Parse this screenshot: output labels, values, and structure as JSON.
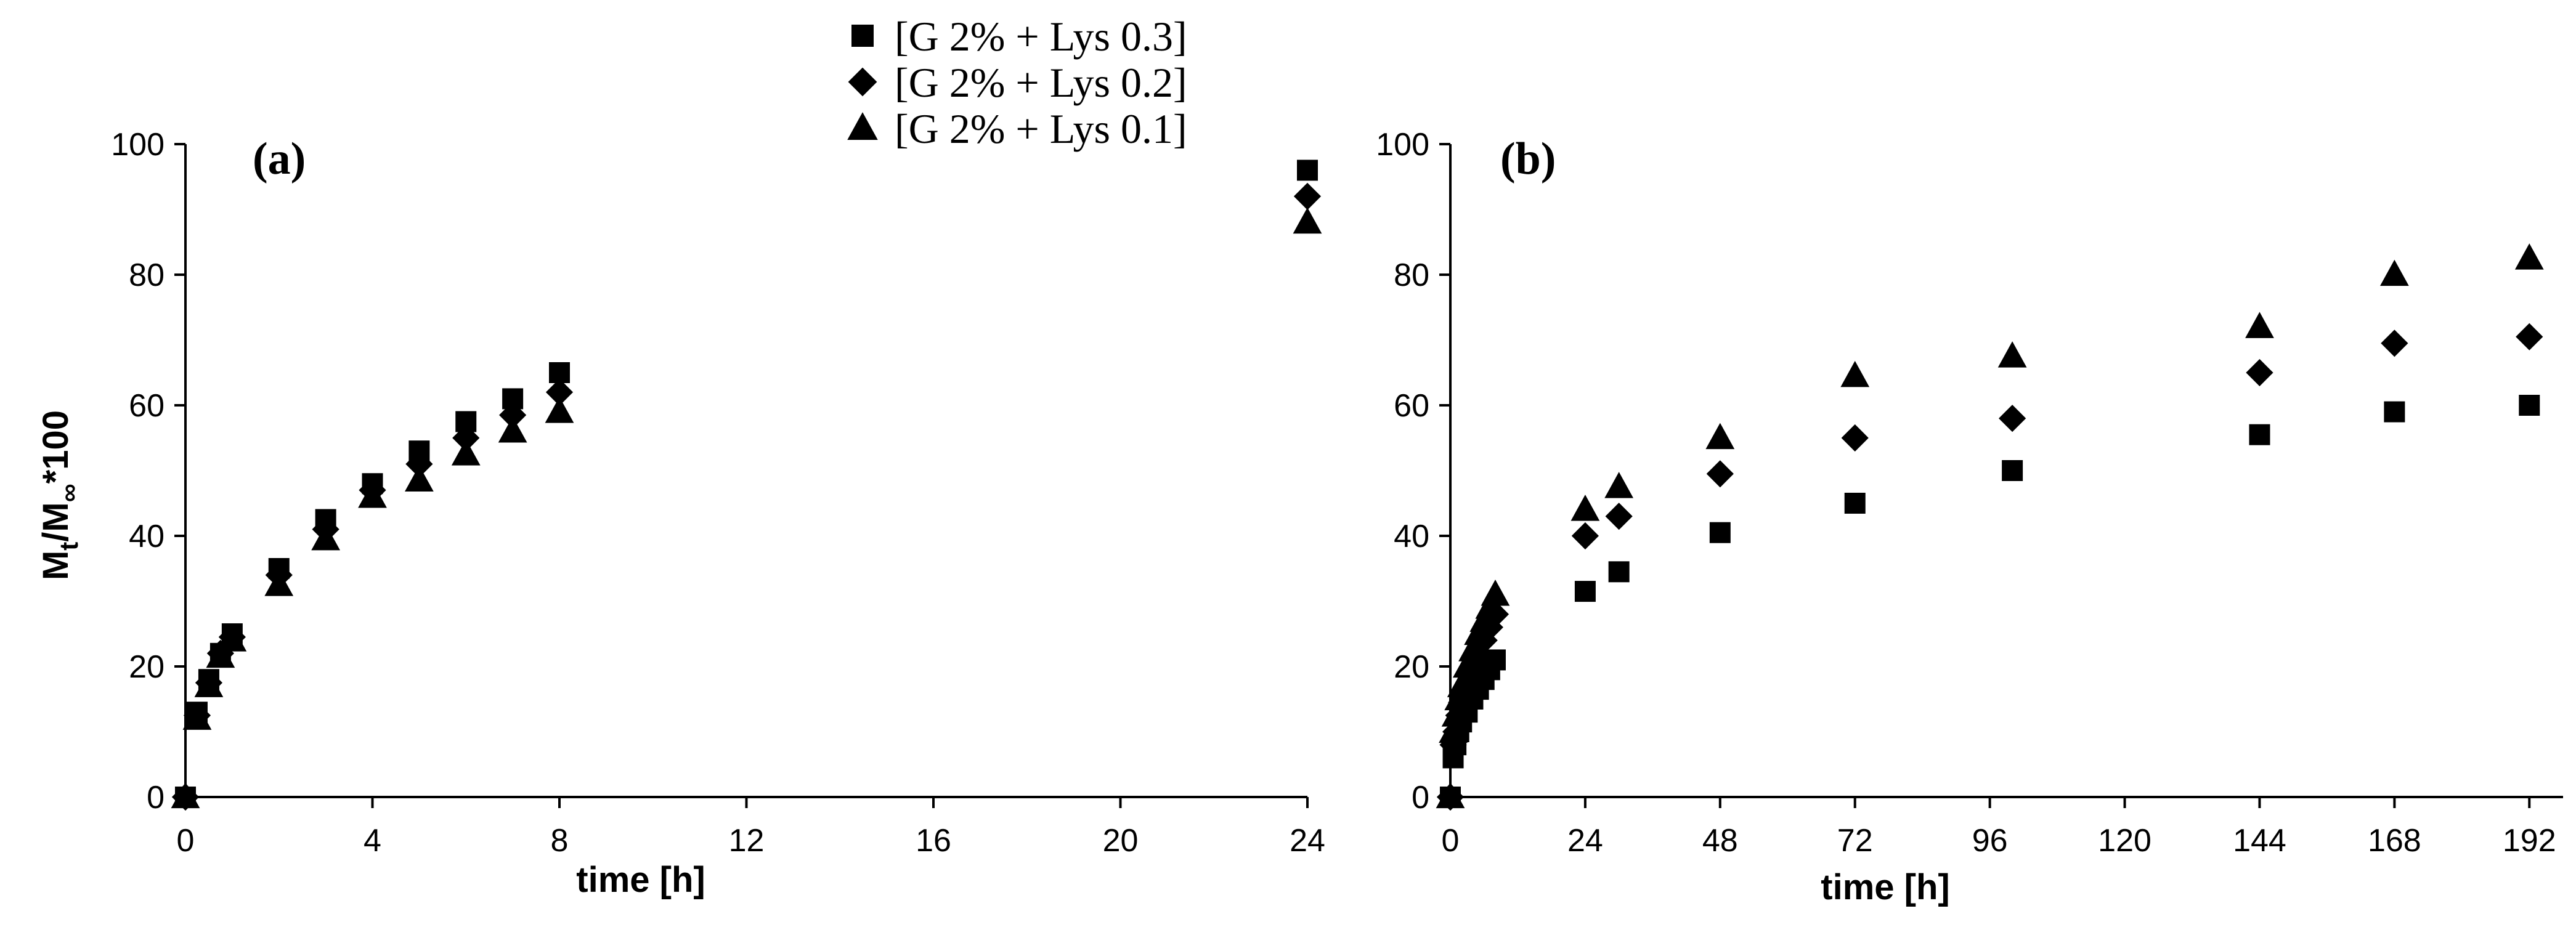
{
  "legend": [
    {
      "label": "[G 2% + Lys 0.3]",
      "marker": "square"
    },
    {
      "label": "[G 2% + Lys 0.2]",
      "marker": "diamond"
    },
    {
      "label": "[G 2% + Lys 0.1]",
      "marker": "triangle"
    }
  ],
  "colors": {
    "marker": "#000000",
    "axis": "#000000",
    "background": "#ffffff"
  },
  "chart_data": [
    {
      "type": "scatter",
      "panel_label": "(a)",
      "xlabel": "time [h]",
      "ylabel": "Mt/M∞*100",
      "ylabel_parts": {
        "main": "M",
        "sub": "t",
        "mid": "/M",
        "sub2": "∞",
        "tail": "*100"
      },
      "xlim": [
        0,
        24
      ],
      "ylim": [
        0,
        100
      ],
      "xticks": [
        "0",
        "4",
        "8",
        "12",
        "16",
        "20",
        "24"
      ],
      "yticks": [
        "0",
        "20",
        "40",
        "60",
        "80",
        "100"
      ],
      "grid": false,
      "series": [
        {
          "name": "[G 2% + Lys 0.3]",
          "marker": "square",
          "x": [
            0,
            0.25,
            0.5,
            0.75,
            1,
            2,
            3,
            4,
            5,
            6,
            7,
            8,
            24
          ],
          "y": [
            0,
            13,
            18,
            22,
            25,
            35,
            42.5,
            48,
            53,
            57.5,
            61,
            65,
            96
          ]
        },
        {
          "name": "[G 2% + Lys 0.2]",
          "marker": "diamond",
          "x": [
            0,
            0.25,
            0.5,
            0.75,
            1,
            2,
            3,
            4,
            5,
            6,
            7,
            8,
            24
          ],
          "y": [
            0,
            12.5,
            17.5,
            22,
            24.5,
            34,
            41,
            47,
            51,
            55,
            58.5,
            62,
            92
          ]
        },
        {
          "name": "[G 2% + Lys 0.1]",
          "marker": "triangle",
          "x": [
            0,
            0.25,
            0.5,
            0.75,
            1,
            2,
            3,
            4,
            5,
            6,
            7,
            8,
            24
          ],
          "y": [
            0,
            12,
            17,
            21.5,
            24,
            32.5,
            39.5,
            46,
            48.5,
            52.5,
            56,
            59,
            88
          ]
        }
      ]
    },
    {
      "type": "scatter",
      "panel_label": "(b)",
      "xlabel": "time [h]",
      "ylabel": "",
      "xlim": [
        0,
        198
      ],
      "ylim": [
        0,
        100
      ],
      "xticks": [
        "0",
        "24",
        "48",
        "72",
        "96",
        "120",
        "144",
        "168",
        "192"
      ],
      "yticks": [
        "0",
        "20",
        "40",
        "60",
        "80",
        "100"
      ],
      "grid": false,
      "series": [
        {
          "name": "[G 2% + Lys 0.3]",
          "marker": "square",
          "x": [
            0,
            0.5,
            1,
            1.5,
            2,
            3,
            4,
            5,
            6,
            7,
            8,
            24,
            30,
            48,
            72,
            100,
            144,
            168,
            192
          ],
          "y": [
            0,
            6,
            8,
            10,
            11.5,
            13,
            15,
            16.5,
            18,
            19.5,
            21,
            31.5,
            34.5,
            40.5,
            45,
            50,
            55.5,
            59,
            60
          ]
        },
        {
          "name": "[G 2% + Lys 0.2]",
          "marker": "diamond",
          "x": [
            0,
            0.5,
            1,
            1.5,
            2,
            3,
            4,
            5,
            6,
            7,
            8,
            24,
            30,
            48,
            72,
            100,
            144,
            168,
            192
          ],
          "y": [
            0,
            8,
            10,
            12.5,
            14.5,
            17,
            19.5,
            22,
            24,
            26,
            28,
            40,
            43,
            49.5,
            55,
            58,
            65,
            69.5,
            70.5
          ]
        },
        {
          "name": "[G 2% + Lys 0.1]",
          "marker": "triangle",
          "x": [
            0,
            0.5,
            1,
            1.5,
            2,
            3,
            4,
            5,
            6,
            7,
            8,
            24,
            30,
            48,
            72,
            100,
            144,
            168,
            192
          ],
          "y": [
            0,
            10,
            12.5,
            15,
            17,
            20,
            22.5,
            25,
            27,
            29,
            31,
            44,
            47.5,
            55,
            64.5,
            67.5,
            72,
            80,
            82.5
          ]
        }
      ]
    }
  ]
}
